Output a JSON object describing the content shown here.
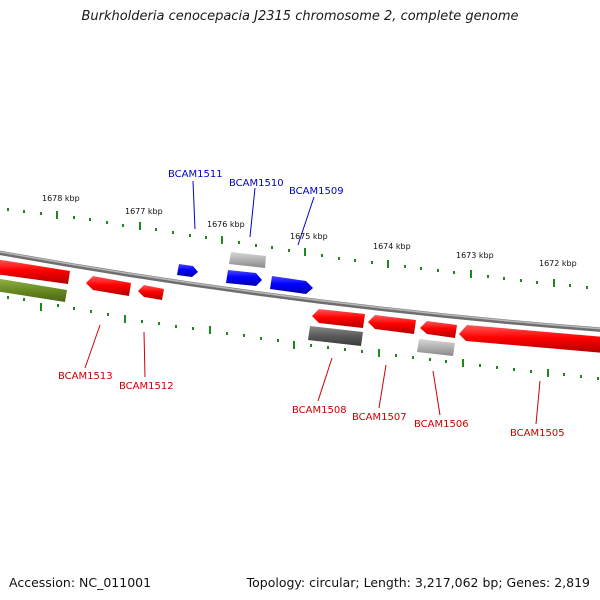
{
  "title": "Burkholderia cenocepacia J2315 chromosome 2, complete genome",
  "footer": {
    "accession": "Accession: NC_011001",
    "summary": "Topology: circular; Length: 3,217,062 bp; Genes: 2,819"
  },
  "colors": {
    "forward_gene": "#0000ee",
    "reverse_gene": "#ee0000",
    "pseudo_gene": "#aaaaaa",
    "dark_gene": "#555555",
    "rna_feature": "#5a7f1a",
    "backbone": "#888888",
    "tick": "#1a8a1a",
    "forward_label": "#0000cc",
    "reverse_label": "#cc0000"
  },
  "scale": {
    "labels": [
      "1678 kbp",
      "1677 kbp",
      "1676 kbp",
      "1675 kbp",
      "1674 kbp",
      "1673 kbp",
      "1672 kbp"
    ]
  },
  "forward_strand_labels": [
    "BCAM1511",
    "BCAM1510",
    "BCAM1509"
  ],
  "reverse_strand_labels": [
    "BCAM1513",
    "BCAM1512",
    "BCAM1508",
    "BCAM1507",
    "BCAM1506",
    "BCAM1505"
  ]
}
